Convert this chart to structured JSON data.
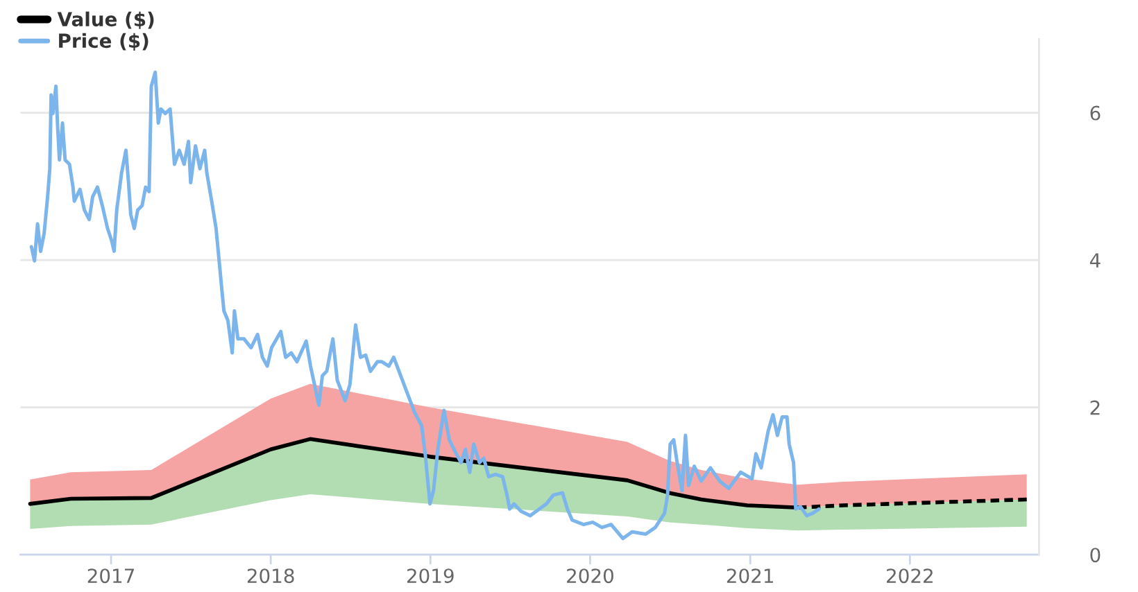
{
  "chart_data": {
    "type": "line",
    "series": [
      {
        "color": "#f5a3a3",
        "x": [
          "2016-06-30",
          "2016-10-01",
          "2017-04-03",
          "2018-01-01",
          "2018-04-01",
          "2019-01-01",
          "2020-03-26",
          "2020-06-29",
          "2020-09-11",
          "2020-12-25",
          "2021-04-20",
          "2021-08-01",
          "2022-09-25"
        ],
        "values": [
          null,
          null,
          null,
          null,
          null,
          null,
          null,
          null,
          null,
          null,
          null,
          null,
          null
        ],
        "lower": [
          0.69,
          0.76,
          0.77,
          1.43,
          1.57,
          1.33,
          1.01,
          0.84,
          0.75,
          0.67,
          0.64,
          0.67,
          0.75
        ],
        "upper": [
          1.02,
          1.12,
          1.15,
          2.12,
          2.32,
          2.0,
          1.53,
          1.28,
          1.15,
          1.03,
          0.95,
          0.99,
          1.09
        ]
      },
      {
        "color": "#b2dcb2",
        "x": [
          "2016-06-30",
          "2016-10-01",
          "2017-04-03",
          "2018-01-01",
          "2018-04-01",
          "2019-01-01",
          "2020-03-26",
          "2020-06-29",
          "2020-09-11",
          "2020-12-25",
          "2021-04-20",
          "2021-08-01",
          "2022-09-25"
        ],
        "values": [
          null,
          null,
          null,
          null,
          null,
          null,
          null,
          null,
          null,
          null,
          null,
          null,
          null
        ],
        "lower": [
          0.35,
          0.39,
          0.41,
          0.74,
          0.82,
          0.69,
          0.52,
          0.44,
          0.41,
          0.36,
          0.33,
          0.34,
          0.38
        ],
        "upper": [
          0.69,
          0.76,
          0.77,
          1.43,
          1.57,
          1.33,
          1.01,
          0.84,
          0.75,
          0.67,
          0.64,
          0.67,
          0.75
        ]
      },
      {
        "name": "Value ($)",
        "color": "#000000",
        "x": [
          "2016-06-30",
          "2016-10-01",
          "2017-04-03",
          "2018-01-01",
          "2018-04-01",
          "2019-01-01",
          "2020-03-26",
          "2020-06-29",
          "2020-09-11",
          "2020-12-25",
          "2021-04-20"
        ],
        "values": [
          0.69,
          0.76,
          0.77,
          1.43,
          1.57,
          1.33,
          1.01,
          0.84,
          0.75,
          0.67,
          0.64
        ]
      },
      {
        "color": "#000000",
        "line_style": "dashed",
        "x": [
          "2021-04-20",
          "2021-08-01",
          "2022-09-25"
        ],
        "values": [
          0.64,
          0.67,
          0.75
        ]
      },
      {
        "name": "Price ($)",
        "color": "#7cb5ec",
        "x": [
          "2016-07-03",
          "2016-07-10",
          "2016-07-17",
          "2016-07-24",
          "2016-08-01",
          "2016-08-09",
          "2016-08-14",
          "2016-08-17",
          "2016-08-21",
          "2016-08-28",
          "2016-09-01",
          "2016-09-05",
          "2016-09-12",
          "2016-09-18",
          "2016-09-28",
          "2016-10-06",
          "2016-10-09",
          "2016-10-22",
          "2016-11-01",
          "2016-11-12",
          "2016-11-20",
          "2016-12-01",
          "2016-12-12",
          "2016-12-24",
          "2017-01-02",
          "2017-01-08",
          "2017-01-14",
          "2017-01-25",
          "2017-02-04",
          "2017-02-10",
          "2017-02-15",
          "2017-02-23",
          "2017-03-03",
          "2017-03-13",
          "2017-03-21",
          "2017-03-29",
          "2017-04-03",
          "2017-04-12",
          "2017-04-19",
          "2017-04-25",
          "2017-05-05",
          "2017-05-16",
          "2017-05-26",
          "2017-06-06",
          "2017-06-17",
          "2017-06-27",
          "2017-07-02",
          "2017-07-13",
          "2017-07-23",
          "2017-08-03",
          "2017-08-08",
          "2017-08-19",
          "2017-08-29",
          "2017-09-06",
          "2017-09-12",
          "2017-09-16",
          "2017-09-25",
          "2017-10-05",
          "2017-10-10",
          "2017-10-18",
          "2017-11-01",
          "2017-11-17",
          "2017-12-02",
          "2017-12-13",
          "2017-12-24",
          "2018-01-03",
          "2018-01-24",
          "2018-02-04",
          "2018-02-17",
          "2018-03-02",
          "2018-03-23",
          "2018-04-02",
          "2018-04-11",
          "2018-04-21",
          "2018-04-29",
          "2018-05-09",
          "2018-05-23",
          "2018-06-02",
          "2018-06-20",
          "2018-07-01",
          "2018-07-14",
          "2018-07-25",
          "2018-08-06",
          "2018-08-17",
          "2018-09-02",
          "2018-09-12",
          "2018-09-28",
          "2018-10-09",
          "2018-10-25",
          "2018-11-10",
          "2018-11-26",
          "2018-12-12",
          "2018-12-20",
          "2018-12-31",
          "2019-01-08",
          "2019-01-18",
          "2019-02-01",
          "2019-02-13",
          "2019-03-01",
          "2019-03-12",
          "2019-03-22",
          "2019-04-01",
          "2019-04-10",
          "2019-04-23",
          "2019-05-03",
          "2019-05-14",
          "2019-05-30",
          "2019-06-15",
          "2019-06-25",
          "2019-07-01",
          "2019-07-11",
          "2019-07-27",
          "2019-08-17",
          "2019-09-07",
          "2019-09-23",
          "2019-10-09",
          "2019-10-30",
          "2019-11-10",
          "2019-11-21",
          "2019-12-17",
          "2020-01-07",
          "2020-01-28",
          "2020-02-18",
          "2020-03-16",
          "2020-04-06",
          "2020-05-07",
          "2020-05-29",
          "2020-06-19",
          "2020-06-26",
          "2020-07-02",
          "2020-07-10",
          "2020-07-18",
          "2020-07-29",
          "2020-08-06",
          "2020-08-13",
          "2020-08-26",
          "2020-09-11",
          "2020-10-02",
          "2020-10-23",
          "2020-11-13",
          "2020-12-10",
          "2021-01-05",
          "2021-01-14",
          "2021-01-26",
          "2021-02-11",
          "2021-02-22",
          "2021-03-04",
          "2021-03-15",
          "2021-03-26",
          "2021-03-31",
          "2021-04-10",
          "2021-04-15",
          "2021-04-26",
          "2021-05-10",
          "2021-05-23",
          "2021-06-07"
        ],
        "values": [
          4.18,
          3.99,
          4.49,
          4.12,
          4.36,
          4.86,
          5.24,
          6.24,
          5.99,
          6.36,
          5.8,
          5.36,
          5.86,
          5.36,
          5.3,
          4.99,
          4.8,
          4.96,
          4.68,
          4.55,
          4.86,
          4.99,
          4.74,
          4.43,
          4.27,
          4.12,
          4.68,
          5.18,
          5.49,
          5.05,
          4.62,
          4.43,
          4.68,
          4.74,
          4.99,
          4.93,
          6.36,
          6.55,
          5.86,
          6.05,
          5.99,
          6.05,
          5.3,
          5.49,
          5.3,
          5.61,
          5.05,
          5.55,
          5.24,
          5.49,
          5.18,
          4.8,
          4.43,
          3.93,
          3.55,
          3.31,
          3.18,
          2.74,
          3.31,
          2.93,
          2.93,
          2.81,
          2.99,
          2.68,
          2.56,
          2.81,
          3.03,
          2.68,
          2.74,
          2.62,
          2.9,
          2.56,
          2.31,
          2.03,
          2.43,
          2.49,
          2.93,
          2.37,
          2.09,
          2.31,
          3.12,
          2.68,
          2.71,
          2.49,
          2.62,
          2.62,
          2.56,
          2.68,
          2.43,
          2.18,
          1.93,
          1.75,
          1.37,
          0.69,
          0.87,
          1.43,
          1.96,
          1.56,
          1.37,
          1.25,
          1.43,
          1.12,
          1.5,
          1.25,
          1.31,
          1.06,
          1.09,
          1.06,
          0.81,
          0.62,
          0.69,
          0.59,
          0.53,
          0.62,
          0.69,
          0.81,
          0.84,
          0.62,
          0.47,
          0.41,
          0.44,
          0.37,
          0.41,
          0.22,
          0.31,
          0.28,
          0.37,
          0.56,
          0.81,
          1.5,
          1.56,
          1.25,
          0.87,
          1.62,
          0.94,
          1.2,
          1.0,
          1.18,
          1.0,
          0.9,
          1.12,
          1.03,
          1.37,
          1.18,
          1.68,
          1.9,
          1.62,
          1.87,
          1.87,
          1.5,
          1.25,
          0.62,
          0.65,
          0.53,
          0.56,
          0.62
        ]
      }
    ],
    "xlim": [
      "2016-06-08",
      "2022-10-23"
    ],
    "xticks": [
      {
        "value": "2017-01-01",
        "label": "2017"
      },
      {
        "value": "2018-01-01",
        "label": "2018"
      },
      {
        "value": "2019-01-01",
        "label": "2019"
      },
      {
        "value": "2020-01-01",
        "label": "2020"
      },
      {
        "value": "2021-01-01",
        "label": "2021"
      },
      {
        "value": "2022-01-01",
        "label": "2022"
      }
    ],
    "ylim": [
      0,
      7
    ],
    "yticks": [
      0,
      2,
      4,
      6
    ],
    "grid": "y",
    "legend": "top left"
  }
}
